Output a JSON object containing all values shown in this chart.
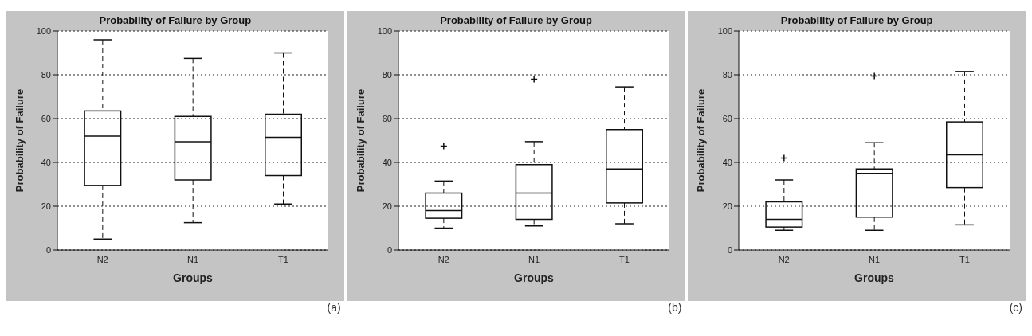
{
  "chart_data": [
    {
      "type": "box",
      "title": "Probability of Failure by Group",
      "xlabel": "Groups",
      "ylabel": "Probability of Failure",
      "categories": [
        "N2",
        "N1",
        "T1"
      ],
      "boxes": [
        {
          "low": 5,
          "q1": 29.5,
          "median": 52,
          "q3": 63.5,
          "high": 96
        },
        {
          "low": 12.5,
          "q1": 32,
          "median": 49.5,
          "q3": 61,
          "high": 87.5
        },
        {
          "low": 21,
          "q1": 34,
          "median": 51.5,
          "q3": 62,
          "high": 90
        }
      ],
      "ylim": [
        0,
        100
      ],
      "yticks": [
        0,
        20,
        40,
        60,
        80,
        100
      ],
      "grid": "y",
      "annotations": [
        "(a)"
      ]
    },
    {
      "type": "box",
      "title": "Probability of Failure by Group",
      "xlabel": "Groups",
      "ylabel": "Probability of Failure",
      "categories": [
        "N2",
        "N1",
        "T1"
      ],
      "boxes": [
        {
          "low": 10,
          "q1": 14.5,
          "median": 18,
          "q3": 26,
          "high": 31.5,
          "outliers": [
            47.5
          ]
        },
        {
          "low": 11,
          "q1": 14,
          "median": 26,
          "q3": 39,
          "high": 49.5,
          "outliers": [
            78
          ]
        },
        {
          "low": 12,
          "q1": 21.5,
          "median": 37,
          "q3": 55,
          "high": 74.5
        }
      ],
      "ylim": [
        0,
        100
      ],
      "yticks": [
        0,
        20,
        40,
        60,
        80,
        100
      ],
      "grid": "y",
      "annotations": [
        "(b)"
      ]
    },
    {
      "type": "box",
      "title": "Probability of Failure by Group",
      "xlabel": "Groups",
      "ylabel": "Probability of Failure",
      "categories": [
        "N2",
        "N1",
        "T1"
      ],
      "boxes": [
        {
          "low": 9,
          "q1": 10.5,
          "median": 14,
          "q3": 22,
          "high": 32,
          "outliers": [
            42
          ]
        },
        {
          "low": 9,
          "q1": 15,
          "median": 35,
          "q3": 37,
          "high": 49,
          "outliers": [
            79.5
          ]
        },
        {
          "low": 11.5,
          "q1": 28.5,
          "median": 43.5,
          "q3": 58.5,
          "high": 81.5
        }
      ],
      "ylim": [
        0,
        100
      ],
      "yticks": [
        0,
        20,
        40,
        60,
        80,
        100
      ],
      "grid": "y",
      "annotations": [
        "(c)"
      ]
    }
  ]
}
